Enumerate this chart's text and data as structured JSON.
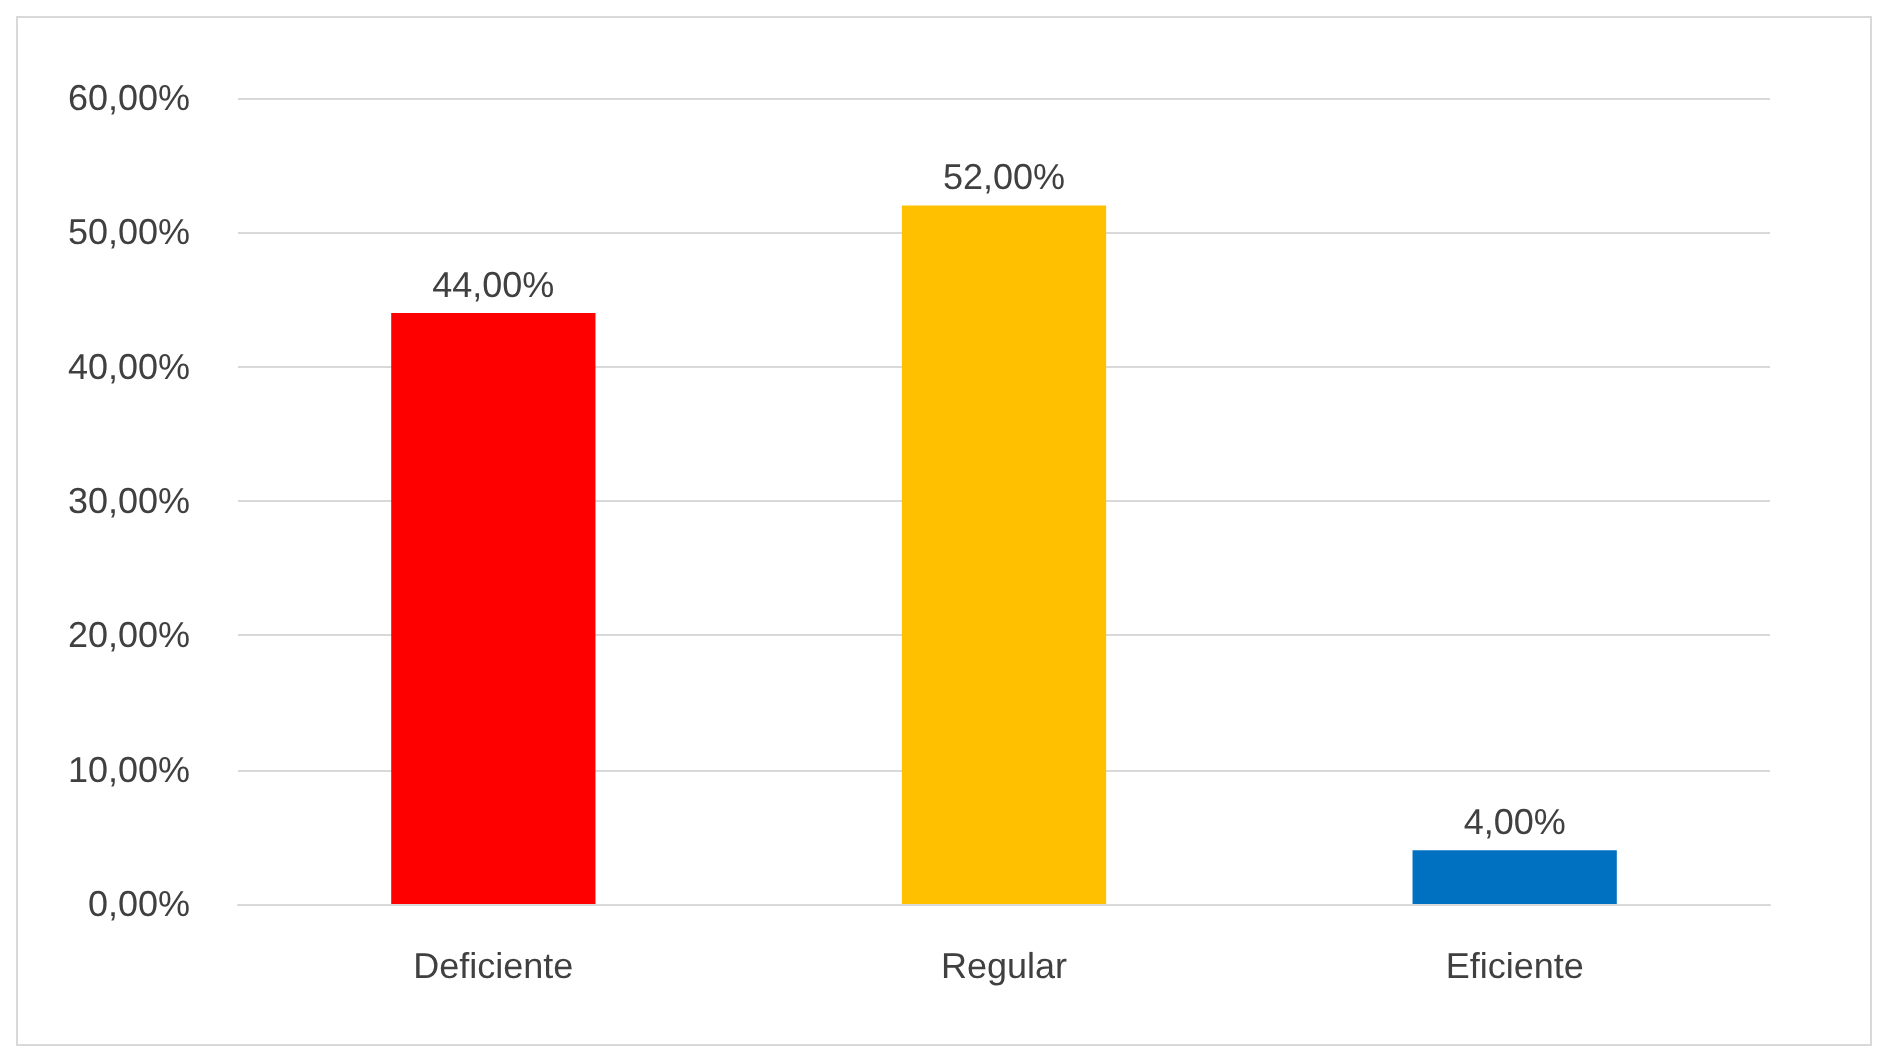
{
  "chart_data": {
    "type": "bar",
    "categories": [
      "Deficiente",
      "Regular",
      "Eficiente"
    ],
    "values": [
      44,
      52,
      4
    ],
    "colors": [
      "#ff0000",
      "#ffc000",
      "#0070c0"
    ],
    "value_labels": [
      "44,00%",
      "52,00%",
      "4,00%"
    ],
    "ylim": [
      0,
      60
    ],
    "yticks": [
      {
        "value": 0,
        "label": "0,00%"
      },
      {
        "value": 10,
        "label": "10,00%"
      },
      {
        "value": 20,
        "label": "20,00%"
      },
      {
        "value": 30,
        "label": "30,00%"
      },
      {
        "value": 40,
        "label": "40,00%"
      },
      {
        "value": 50,
        "label": "50,00%"
      },
      {
        "value": 60,
        "label": "60,00%"
      }
    ],
    "grid": true
  }
}
